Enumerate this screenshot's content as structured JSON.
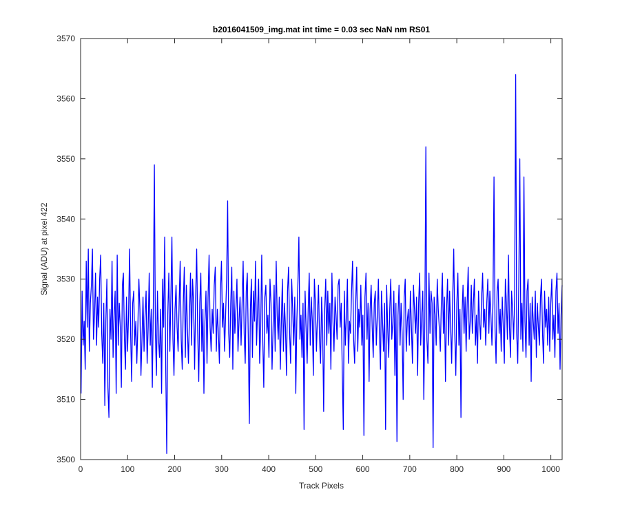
{
  "chart_data": {
    "type": "line",
    "title": "b2016041509_img.mat int time = 0.03 sec  NaN nm RS01",
    "xlabel": "Track Pixels",
    "ylabel": "Signal (ADU) at pixel 422",
    "xlim": [
      0,
      1024
    ],
    "ylim": [
      3500,
      3570
    ],
    "xticks": [
      0,
      100,
      200,
      300,
      400,
      500,
      600,
      700,
      800,
      900,
      1000
    ],
    "yticks": [
      3500,
      3510,
      3520,
      3530,
      3540,
      3550,
      3560,
      3570
    ],
    "grid": false,
    "line_color": "#0000ff",
    "series": [
      {
        "x_start": 1,
        "x_step": 1,
        "values": [
          3511,
          3528,
          3519,
          3523,
          3515,
          3533,
          3522,
          3535,
          3518,
          3526,
          3529,
          3535,
          3520,
          3524,
          3531,
          3519,
          3527,
          3522,
          3530,
          3534,
          3521,
          3516,
          3526,
          3509,
          3523,
          3530,
          3512,
          3507,
          3525,
          3520,
          3533,
          3517,
          3524,
          3528,
          3511,
          3534,
          3519,
          3526,
          3522,
          3512,
          3529,
          3531,
          3520,
          3515,
          3527,
          3518,
          3524,
          3535,
          3521,
          3513,
          3526,
          3528,
          3519,
          3523,
          3516,
          3522,
          3530,
          3525,
          3514,
          3520,
          3527,
          3518,
          3524,
          3528,
          3516,
          3522,
          3531,
          3519,
          3525,
          3512,
          3526,
          3549,
          3521,
          3514,
          3528,
          3520,
          3517,
          3525,
          3511,
          3530,
          3522,
          3537,
          3516,
          3501,
          3524,
          3531,
          3518,
          3527,
          3537,
          3520,
          3514,
          3525,
          3529,
          3522,
          3518,
          3526,
          3533,
          3520,
          3515,
          3526,
          3532,
          3517,
          3529,
          3522,
          3516,
          3524,
          3531,
          3519,
          3530,
          3526,
          3515,
          3527,
          3535,
          3521,
          3513,
          3526,
          3531,
          3518,
          3525,
          3511,
          3523,
          3528,
          3516,
          3527,
          3534,
          3522,
          3518,
          3525,
          3521,
          3529,
          3532,
          3518,
          3525,
          3521,
          3516,
          3528,
          3533,
          3522,
          3526,
          3518,
          3524,
          3530,
          3543,
          3521,
          3517,
          3526,
          3532,
          3515,
          3528,
          3521,
          3525,
          3530,
          3518,
          3523,
          3527,
          3519,
          3526,
          3533,
          3521,
          3516,
          3528,
          3531,
          3520,
          3506,
          3525,
          3530,
          3517,
          3528,
          3523,
          3533,
          3519,
          3525,
          3530,
          3516,
          3522,
          3534,
          3520,
          3512,
          3527,
          3529,
          3521,
          3524,
          3517,
          3530,
          3526,
          3515,
          3522,
          3529,
          3518,
          3533,
          3524,
          3520,
          3527,
          3515,
          3523,
          3530,
          3518,
          3526,
          3522,
          3514,
          3528,
          3532,
          3521,
          3516,
          3530,
          3525,
          3519,
          3527,
          3511,
          3523,
          3529,
          3537,
          3520,
          3524,
          3517,
          3526,
          3505,
          3528,
          3522,
          3516,
          3525,
          3531,
          3519,
          3527,
          3523,
          3514,
          3530,
          3526,
          3518,
          3524,
          3529,
          3520,
          3516,
          3527,
          3522,
          3508,
          3525,
          3530,
          3519,
          3528,
          3521,
          3526,
          3515,
          3531,
          3523,
          3518,
          3527,
          3524,
          3520,
          3529,
          3530,
          3522,
          3526,
          3515,
          3505,
          3528,
          3519,
          3524,
          3530,
          3516,
          3523,
          3521,
          3528,
          3533,
          3520,
          3516,
          3526,
          3532,
          3518,
          3525,
          3522,
          3529,
          3519,
          3524,
          3504,
          3527,
          3531,
          3520,
          3526,
          3513,
          3525,
          3529,
          3522,
          3517,
          3526,
          3528,
          3519,
          3524,
          3530,
          3521,
          3515,
          3528,
          3523,
          3518,
          3526,
          3505,
          3529,
          3522,
          3517,
          3525,
          3530,
          3520,
          3523,
          3528,
          3514,
          3526,
          3503,
          3524,
          3529,
          3519,
          3526,
          3521,
          3510,
          3527,
          3530,
          3518,
          3523,
          3525,
          3519,
          3528,
          3522,
          3516,
          3529,
          3525,
          3521,
          3527,
          3514,
          3526,
          3531,
          3519,
          3524,
          3528,
          3510,
          3523,
          3552,
          3520,
          3516,
          3531,
          3521,
          3528,
          3526,
          3502,
          3527,
          3524,
          3519,
          3530,
          3525,
          3522,
          3518,
          3526,
          3531,
          3521,
          3527,
          3513,
          3525,
          3530,
          3519,
          3528,
          3522,
          3516,
          3527,
          3535,
          3521,
          3514,
          3526,
          3531,
          3519,
          3525,
          3507,
          3524,
          3529,
          3521,
          3527,
          3518,
          3526,
          3532,
          3520,
          3523,
          3529,
          3521,
          3526,
          3530,
          3519,
          3524,
          3516,
          3528,
          3523,
          3520,
          3527,
          3531,
          3522,
          3525,
          3519,
          3526,
          3530,
          3521,
          3528,
          3524,
          3519,
          3526,
          3547,
          3522,
          3516,
          3528,
          3530,
          3521,
          3525,
          3518,
          3527,
          3522,
          3516,
          3530,
          3526,
          3520,
          3534,
          3522,
          3517,
          3528,
          3525,
          3520,
          3527,
          3564,
          3521,
          3516,
          3529,
          3550,
          3520,
          3526,
          3518,
          3547,
          3523,
          3517,
          3528,
          3530,
          3519,
          3526,
          3513,
          3527,
          3523,
          3520,
          3528,
          3517,
          3526,
          3522,
          3519,
          3527,
          3530,
          3521,
          3516,
          3528,
          3522,
          3525,
          3519,
          3527,
          3518,
          3526,
          3530,
          3520,
          3524,
          3517,
          3528,
          3531,
          3521,
          3526,
          3515,
          3524,
          3529
        ]
      }
    ]
  }
}
